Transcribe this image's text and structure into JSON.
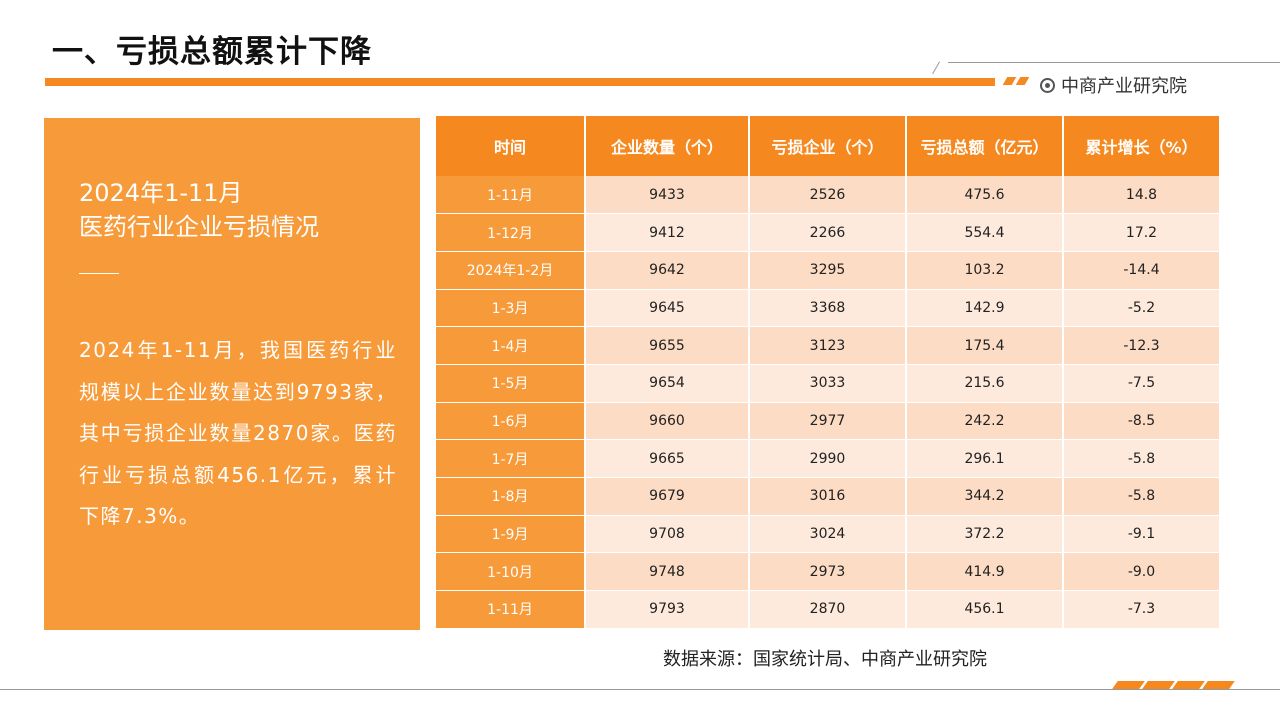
{
  "page": {
    "title": "一、亏损总额累计下降",
    "brand": "中商产业研究院"
  },
  "panel": {
    "heading_line1": "2024年1-11月",
    "heading_line2": "医药行业企业亏损情况",
    "body": "2024年1-11月，我国医药行业规模以上企业数量达到9793家，其中亏损企业数量2870家。医药行业亏损总额456.1亿元，累计下降7.3%。"
  },
  "table": {
    "headers": [
      "时间",
      "企业数量（个）",
      "亏损企业（个）",
      "亏损总额（亿元）",
      "累计增长（%）"
    ],
    "rows": [
      [
        "1-11月",
        "9433",
        "2526",
        "475.6",
        "14.8"
      ],
      [
        "1-12月",
        "9412",
        "2266",
        "554.4",
        "17.2"
      ],
      [
        "2024年1-2月",
        "9642",
        "3295",
        "103.2",
        "-14.4"
      ],
      [
        "1-3月",
        "9645",
        "3368",
        "142.9",
        "-5.2"
      ],
      [
        "1-4月",
        "9655",
        "3123",
        "175.4",
        "-12.3"
      ],
      [
        "1-5月",
        "9654",
        "3033",
        "215.6",
        "-7.5"
      ],
      [
        "1-6月",
        "9660",
        "2977",
        "242.2",
        "-8.5"
      ],
      [
        "1-7月",
        "9665",
        "2990",
        "296.1",
        "-5.8"
      ],
      [
        "1-8月",
        "9679",
        "3016",
        "344.2",
        "-5.8"
      ],
      [
        "1-9月",
        "9708",
        "3024",
        "372.2",
        "-9.1"
      ],
      [
        "1-10月",
        "9748",
        "2973",
        "414.9",
        "-9.0"
      ],
      [
        "1-11月",
        "9793",
        "2870",
        "456.1",
        "-7.3"
      ]
    ]
  },
  "source": "数据来源：国家统计局、中商产业研究院",
  "colors": {
    "accent": "#f5891f",
    "panel": "#f79a3a",
    "row_odd": "#fcdcc4",
    "row_even": "#fdeadc"
  },
  "icons": {
    "brand": "circle-dot-icon"
  }
}
